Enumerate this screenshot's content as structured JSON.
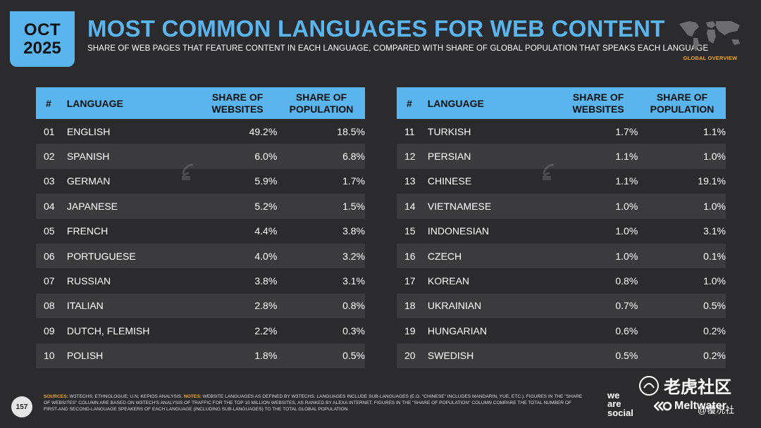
{
  "header": {
    "badge_month": "OCT",
    "badge_year": "2025",
    "title": "MOST COMMON LANGUAGES FOR WEB CONTENT",
    "subtitle": "SHARE OF WEB PAGES THAT FEATURE CONTENT IN EACH LANGUAGE, COMPARED WITH SHARE OF GLOBAL POPULATION THAT SPEAKS EACH LANGUAGE",
    "global_label": "GLOBAL OVERVIEW"
  },
  "chart_data": {
    "type": "table",
    "title": "MOST COMMON LANGUAGES FOR WEB CONTENT",
    "columns": [
      "#",
      "LANGUAGE",
      "SHARE OF WEBSITES",
      "SHARE OF POPULATION"
    ],
    "rows": [
      {
        "num": "01",
        "language": "ENGLISH",
        "websites": "49.2%",
        "population": "18.5%"
      },
      {
        "num": "02",
        "language": "SPANISH",
        "websites": "6.0%",
        "population": "6.8%"
      },
      {
        "num": "03",
        "language": "GERMAN",
        "websites": "5.9%",
        "population": "1.7%"
      },
      {
        "num": "04",
        "language": "JAPANESE",
        "websites": "5.2%",
        "population": "1.5%"
      },
      {
        "num": "05",
        "language": "FRENCH",
        "websites": "4.4%",
        "population": "3.8%"
      },
      {
        "num": "06",
        "language": "PORTUGUESE",
        "websites": "4.0%",
        "population": "3.2%"
      },
      {
        "num": "07",
        "language": "RUSSIAN",
        "websites": "3.8%",
        "population": "3.1%"
      },
      {
        "num": "08",
        "language": "ITALIAN",
        "websites": "2.8%",
        "population": "0.8%"
      },
      {
        "num": "09",
        "language": "DUTCH, FLEMISH",
        "websites": "2.2%",
        "population": "0.3%"
      },
      {
        "num": "10",
        "language": "POLISH",
        "websites": "1.8%",
        "population": "0.5%"
      },
      {
        "num": "11",
        "language": "TURKISH",
        "websites": "1.7%",
        "population": "1.1%"
      },
      {
        "num": "12",
        "language": "PERSIAN",
        "websites": "1.1%",
        "population": "1.0%"
      },
      {
        "num": "13",
        "language": "CHINESE",
        "websites": "1.1%",
        "population": "19.1%"
      },
      {
        "num": "14",
        "language": "VIETNAMESE",
        "websites": "1.0%",
        "population": "1.0%"
      },
      {
        "num": "15",
        "language": "INDONESIAN",
        "websites": "1.0%",
        "population": "3.1%"
      },
      {
        "num": "16",
        "language": "CZECH",
        "websites": "1.0%",
        "population": "0.1%"
      },
      {
        "num": "17",
        "language": "KOREAN",
        "websites": "0.8%",
        "population": "1.0%"
      },
      {
        "num": "18",
        "language": "UKRAINIAN",
        "websites": "0.7%",
        "population": "0.5%"
      },
      {
        "num": "19",
        "language": "HUNGARIAN",
        "websites": "0.6%",
        "population": "0.2%"
      },
      {
        "num": "20",
        "language": "SWEDISH",
        "websites": "0.5%",
        "population": "0.2%"
      }
    ]
  },
  "footer": {
    "page_number": "157",
    "sources_label": "SOURCES:",
    "sources_text": "W3TECHS; ETHNOLOGUE; U.N; KEPIOS ANALYSIS.",
    "notes_label": "NOTES:",
    "notes_text": "WEBSITE LANGUAGES AS DEFINED BY W3TECHS. LANGUAGES INCLUDE SUB-LANGUAGES (E.G. \"CHINESE\" INCLUDES MANDARIN, YUE, ETC.). FIGURES IN THE \"SHARE OF WEBSITES\" COLUMN ARE BASED ON W3TECH'S ANALYSIS OF TRAFFIC FOR THE TOP 10 MILLION WEBSITES, AS RANKED BY ALEXA INTERNET. FIGURES IN THE \"SHARE OF POPULATION\" COLUMN COMPARE THE TOTAL NUMBER OF FIRST-AND SECOND-LANGUAGE SPEAKERS OF EACH LANGUAGE (INCLUDING SUB-LANGUAGES) TO THE TOTAL GLOBAL POPULATION.",
    "brand_we": "we",
    "brand_are": "are",
    "brand_social": "social",
    "brand_meltwater": "Meltwater",
    "watermark_cn": "老虎社区",
    "watermark_sub": "@覆况社"
  },
  "colors": {
    "accent": "#5ab4ee",
    "background": "#2b2b2d",
    "row_alt": "#3b3b3e",
    "highlight": "#f5a623"
  }
}
